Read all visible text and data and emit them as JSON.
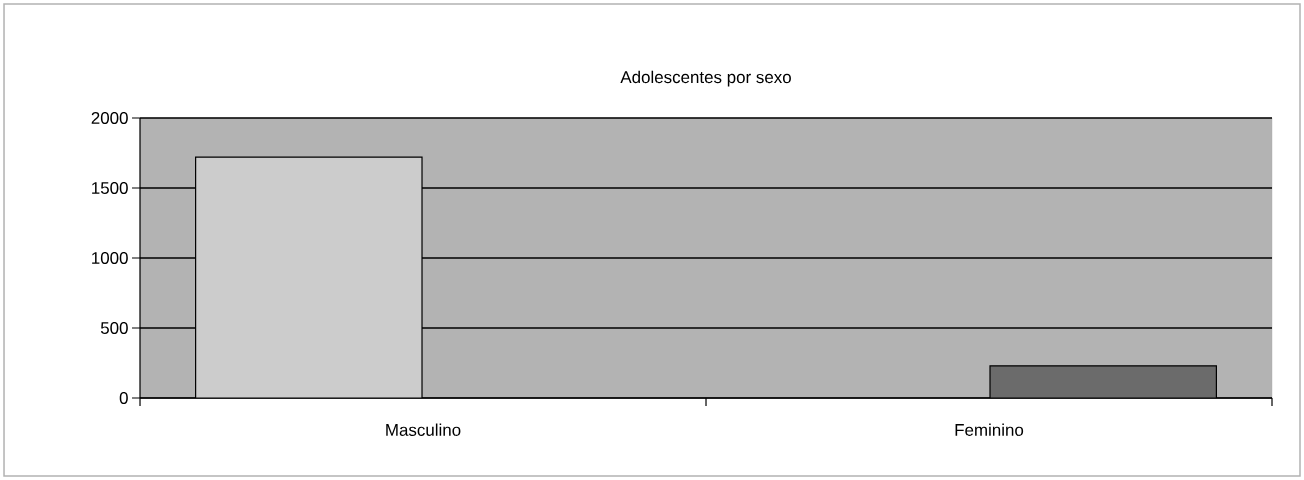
{
  "chart_data": {
    "type": "bar",
    "title": "Adolescentes por sexo",
    "categories": [
      "Masculino",
      "Feminino"
    ],
    "values": [
      1720,
      230
    ],
    "colors": [
      "#cccccc",
      "#6b6b6b"
    ],
    "ylim": [
      0,
      2000
    ],
    "yticks": [
      0,
      500,
      1000,
      1500,
      2000
    ],
    "grid": "y"
  }
}
